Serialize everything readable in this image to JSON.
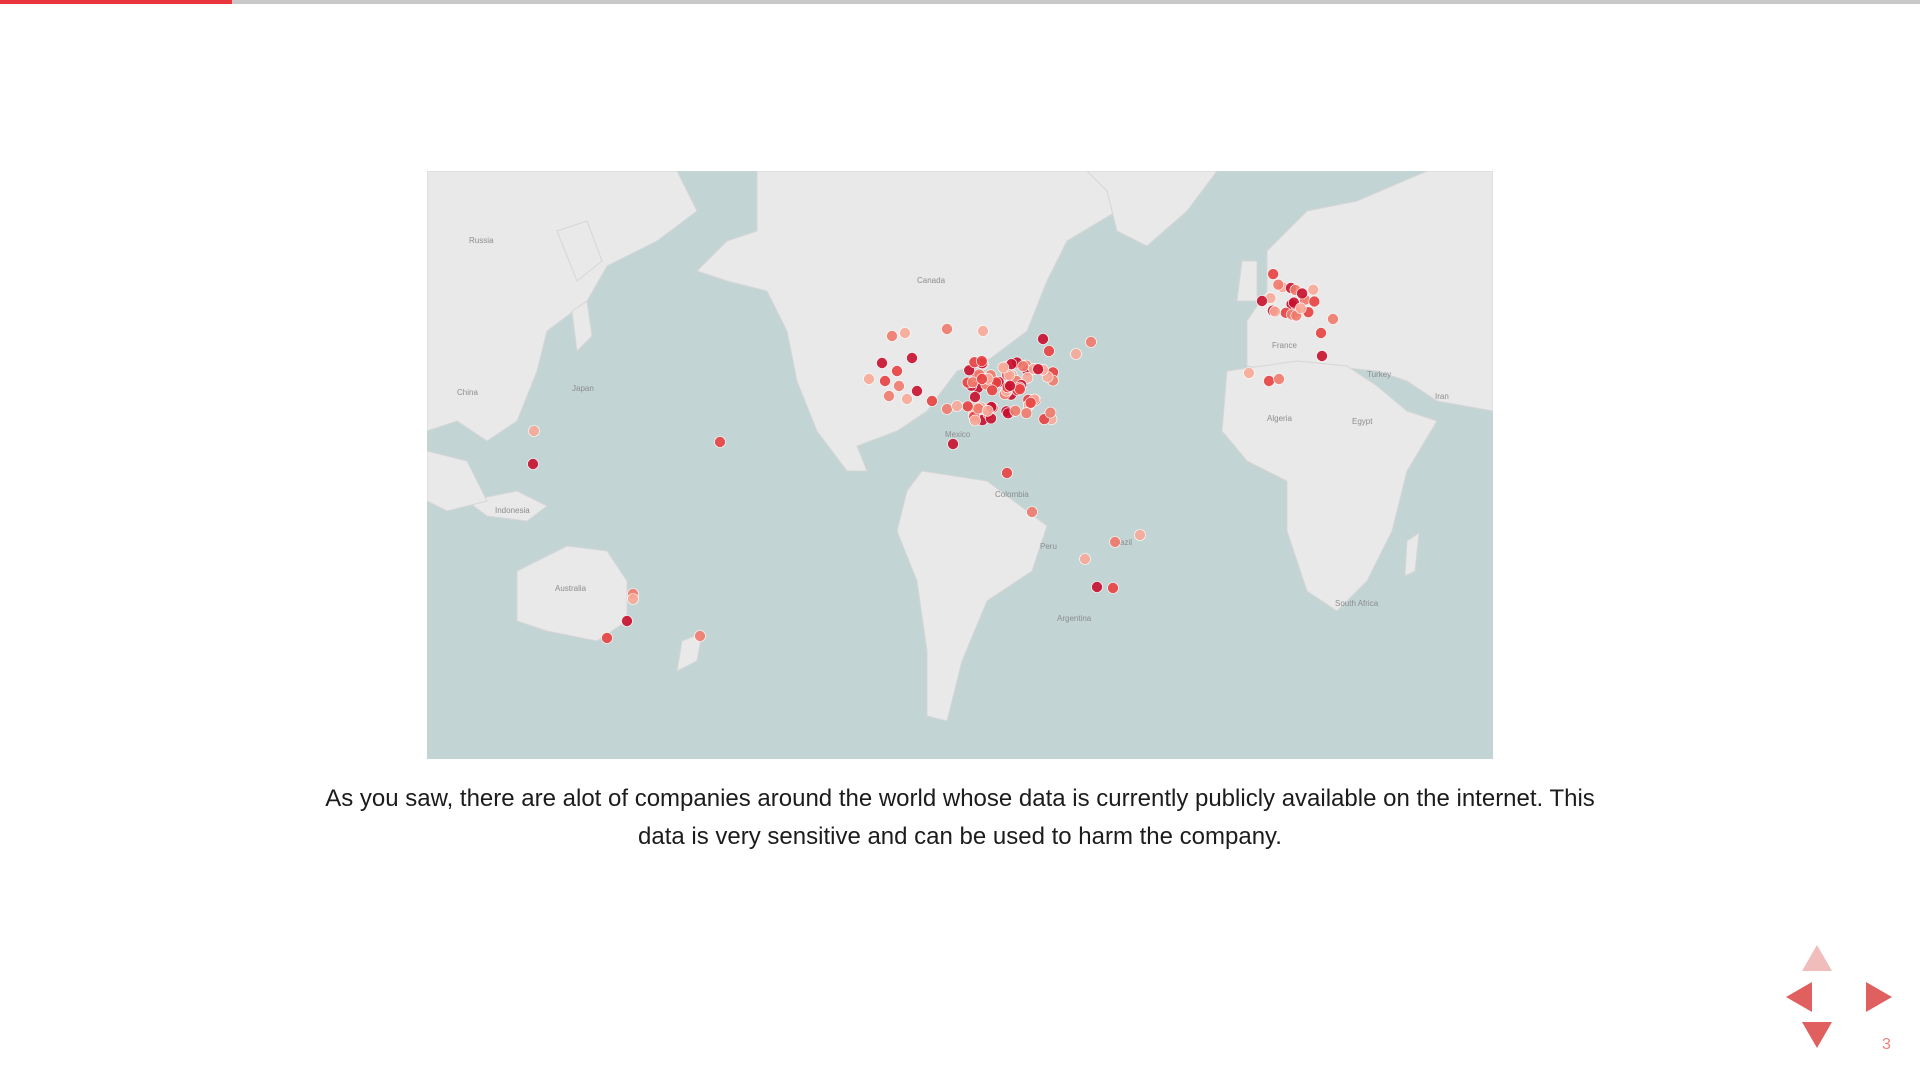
{
  "progress": {
    "fraction": 0.121,
    "color": "#e8343a",
    "track_color": "#c8c8c8"
  },
  "map": {
    "water_color": "#c2d4d4",
    "land_color": "#e9e9e9",
    "point_colors": [
      "#c8102e",
      "#e84040",
      "#f07a6c",
      "#f8a898"
    ],
    "labels": [
      "Russia",
      "Canada",
      "China",
      "Japan",
      "Indonesia",
      "Australia",
      "Mexico",
      "Colombia",
      "Peru",
      "Brazil",
      "Argentina",
      "France",
      "Algeria",
      "Egypt",
      "Turkey",
      "Iran",
      "South Africa"
    ]
  },
  "caption": {
    "line1": "As you saw, there are alot of companies around the world whose data is currently publicly available on the internet. This",
    "line2": "data is very sensitive and can be used to harm the company."
  },
  "navigation": {
    "up_icon": "arrow-up-icon",
    "down_icon": "arrow-down-icon",
    "left_icon": "arrow-left-icon",
    "right_icon": "arrow-right-icon",
    "up_color": "#f0bcbc",
    "arrow_color": "#e06060"
  },
  "slide_number": "3"
}
